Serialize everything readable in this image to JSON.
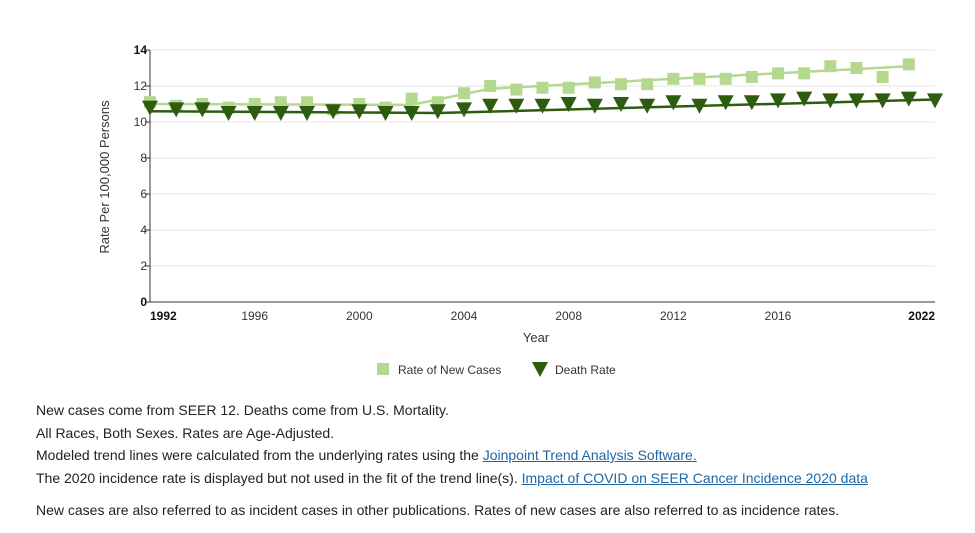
{
  "chart_data": {
    "type": "line",
    "ylabel": "Rate Per 100,000 Persons",
    "xlabel": "Year",
    "xlim": [
      1992,
      2022
    ],
    "ylim": [
      0,
      14
    ],
    "x_ticks": [
      "1992",
      "1996",
      "2000",
      "2004",
      "2008",
      "2012",
      "2016",
      "2022"
    ],
    "y_ticks": [
      "0",
      "2",
      "4",
      "6",
      "8",
      "10",
      "12",
      "14"
    ],
    "grid": true,
    "legend_position": "bottom",
    "series": [
      {
        "name": "Rate of New Cases",
        "color": "#b5d88f",
        "marker": "square",
        "x": [
          1992,
          1993,
          1994,
          1995,
          1996,
          1997,
          1998,
          1999,
          2000,
          2001,
          2002,
          2003,
          2004,
          2005,
          2006,
          2007,
          2008,
          2009,
          2010,
          2011,
          2012,
          2013,
          2014,
          2015,
          2016,
          2017,
          2018,
          2019,
          2020,
          2021
        ],
        "values": [
          11.1,
          10.9,
          11.0,
          10.8,
          11.0,
          11.1,
          11.1,
          10.7,
          11.0,
          10.8,
          11.3,
          11.1,
          11.6,
          12.0,
          11.8,
          11.9,
          11.9,
          12.2,
          12.1,
          12.1,
          12.4,
          12.4,
          12.4,
          12.5,
          12.7,
          12.7,
          13.1,
          13.0,
          12.5,
          13.2
        ],
        "trend_x": [
          1992,
          2002,
          2005,
          2021
        ],
        "trend_values": [
          11.0,
          10.95,
          11.85,
          13.1
        ]
      },
      {
        "name": "Death Rate",
        "color": "#2e5c0e",
        "marker": "triangle-down",
        "x": [
          1992,
          1993,
          1994,
          1995,
          1996,
          1997,
          1998,
          1999,
          2000,
          2001,
          2002,
          2003,
          2004,
          2005,
          2006,
          2007,
          2008,
          2009,
          2010,
          2011,
          2012,
          2013,
          2014,
          2015,
          2016,
          2017,
          2018,
          2019,
          2020,
          2021,
          2022
        ],
        "values": [
          10.8,
          10.7,
          10.7,
          10.5,
          10.5,
          10.5,
          10.5,
          10.6,
          10.6,
          10.5,
          10.5,
          10.6,
          10.7,
          10.9,
          10.9,
          10.9,
          11.0,
          10.9,
          11.0,
          10.9,
          11.1,
          10.9,
          11.1,
          11.1,
          11.2,
          11.3,
          11.2,
          11.2,
          11.2,
          11.3,
          11.2
        ],
        "trend_x": [
          1992,
          2003,
          2022
        ],
        "trend_values": [
          10.6,
          10.5,
          11.25
        ]
      }
    ]
  },
  "notes": {
    "line1": "New cases come from SEER 12. Deaths come from U.S. Mortality.",
    "line2": "All Races, Both Sexes. Rates are Age-Adjusted.",
    "line3_text": "Modeled trend lines were calculated from the underlying rates using the ",
    "line3_link": "Joinpoint Trend Analysis Software.",
    "line4_text": "The 2020 incidence rate is displayed but not used in the fit of the trend line(s). ",
    "line4_link": "Impact of COVID on SEER Cancer Incidence 2020 data",
    "line5": "New cases are also referred to as incident cases in other publications. Rates of new cases are also referred to as incidence rates."
  }
}
